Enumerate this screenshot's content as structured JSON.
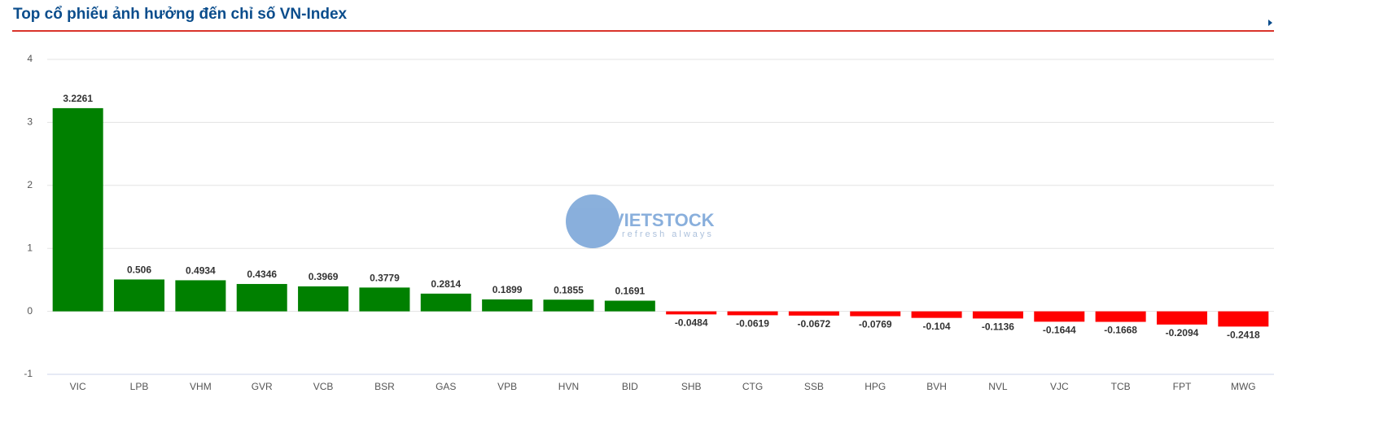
{
  "chart_data": {
    "type": "bar",
    "title": "Top cổ phiếu ảnh hưởng đến chỉ số VN-Index",
    "watermark": "VIETSTOCK",
    "watermark_tagline": "refresh always",
    "categories": [
      "VIC",
      "LPB",
      "VHM",
      "GVR",
      "VCB",
      "BSR",
      "GAS",
      "VPB",
      "HVN",
      "BID",
      "SHB",
      "CTG",
      "SSB",
      "HPG",
      "BVH",
      "NVL",
      "VJC",
      "TCB",
      "FPT",
      "MWG"
    ],
    "values": [
      3.2261,
      0.506,
      0.4934,
      0.4346,
      0.3969,
      0.3779,
      0.2814,
      0.1899,
      0.1855,
      0.1691,
      -0.0484,
      -0.0619,
      -0.0672,
      -0.0769,
      -0.104,
      -0.1136,
      -0.1644,
      -0.1668,
      -0.2094,
      -0.2418
    ],
    "positive_color": "#008000",
    "negative_color": "#ff0000",
    "ylim": [
      -1,
      4
    ],
    "yticks": [
      -1,
      0,
      1,
      2,
      3,
      4
    ],
    "grid": true
  }
}
